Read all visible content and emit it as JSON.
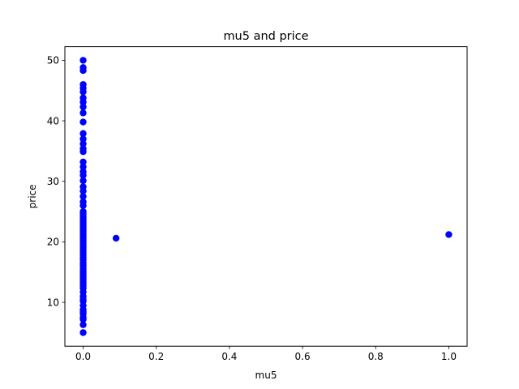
{
  "chart_data": {
    "type": "scatter",
    "title": "mu5 and price",
    "xlabel": "mu5",
    "ylabel": "price",
    "xlim": [
      -0.05,
      1.05
    ],
    "ylim": [
      2.75,
      52.25
    ],
    "xticks": [
      0.0,
      0.2,
      0.4,
      0.6,
      0.8,
      1.0
    ],
    "xtick_labels": [
      "0.0",
      "0.2",
      "0.4",
      "0.6",
      "0.8",
      "1.0"
    ],
    "yticks": [
      10,
      20,
      30,
      40,
      50
    ],
    "ytick_labels": [
      "10",
      "20",
      "30",
      "40",
      "50"
    ],
    "grid": false,
    "marker_color": "#0000ff",
    "series": [
      {
        "points": [
          [
            0,
            5.0
          ],
          [
            0,
            6.3
          ],
          [
            0,
            7.2
          ],
          [
            0,
            7.5
          ],
          [
            0,
            8.1
          ],
          [
            0,
            8.4
          ],
          [
            0,
            8.8
          ],
          [
            0,
            9.5
          ],
          [
            0,
            10.2
          ],
          [
            0,
            10.5
          ],
          [
            0,
            11.0
          ],
          [
            0,
            11.7
          ],
          [
            0,
            12.3
          ],
          [
            0,
            12.7
          ],
          [
            0,
            13.1
          ],
          [
            0,
            13.4
          ],
          [
            0,
            13.8
          ],
          [
            0,
            14.1
          ],
          [
            0,
            14.5
          ],
          [
            0,
            14.9
          ],
          [
            0,
            15.2
          ],
          [
            0,
            15.6
          ],
          [
            0,
            16.1
          ],
          [
            0,
            16.5
          ],
          [
            0,
            17.0
          ],
          [
            0,
            17.4
          ],
          [
            0,
            17.8
          ],
          [
            0,
            18.2
          ],
          [
            0,
            18.6
          ],
          [
            0,
            19.0
          ],
          [
            0,
            19.4
          ],
          [
            0,
            19.8
          ],
          [
            0,
            20.2
          ],
          [
            0,
            20.6
          ],
          [
            0,
            21.0
          ],
          [
            0,
            21.4
          ],
          [
            0,
            21.8
          ],
          [
            0,
            22.2
          ],
          [
            0,
            22.6
          ],
          [
            0,
            23.0
          ],
          [
            0,
            23.4
          ],
          [
            0,
            23.8
          ],
          [
            0,
            24.2
          ],
          [
            0,
            24.6
          ],
          [
            0,
            25.0
          ],
          [
            0,
            26.0
          ],
          [
            0,
            26.6
          ],
          [
            0,
            27.5
          ],
          [
            0,
            28.4
          ],
          [
            0,
            29.1
          ],
          [
            0,
            30.1
          ],
          [
            0,
            31.0
          ],
          [
            0,
            31.6
          ],
          [
            0,
            32.4
          ],
          [
            0,
            33.2
          ],
          [
            0,
            34.9
          ],
          [
            0,
            35.4
          ],
          [
            0,
            36.2
          ],
          [
            0,
            37.0
          ],
          [
            0,
            37.9
          ],
          [
            0,
            39.8
          ],
          [
            0,
            41.3
          ],
          [
            0,
            42.3
          ],
          [
            0,
            43.1
          ],
          [
            0,
            43.8
          ],
          [
            0,
            44.8
          ],
          [
            0,
            45.4
          ],
          [
            0,
            46.0
          ],
          [
            0,
            48.3
          ],
          [
            0,
            48.8
          ],
          [
            0,
            50.0
          ],
          [
            0.09,
            20.6
          ],
          [
            1.0,
            21.2
          ]
        ]
      }
    ]
  }
}
